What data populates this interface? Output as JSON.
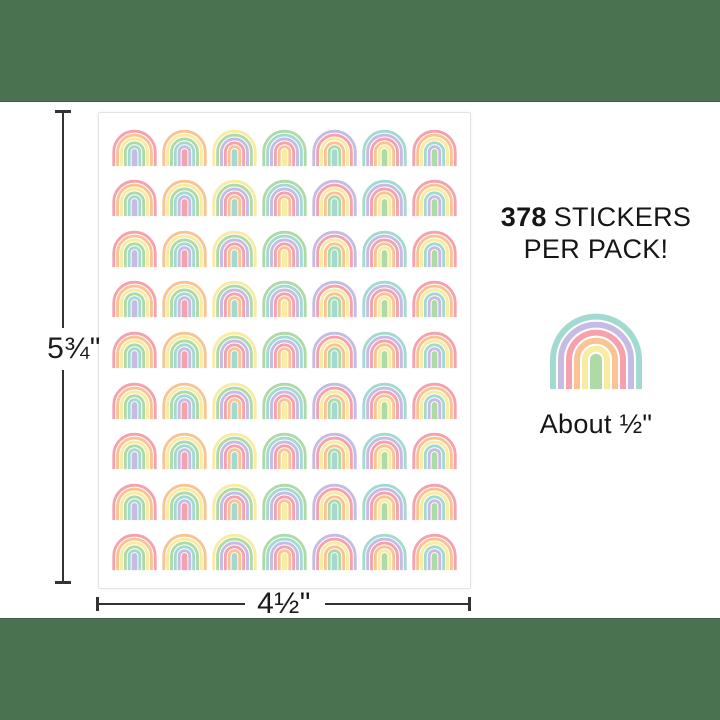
{
  "scene": {
    "background_color": "#4a7150",
    "panel_color": "#ffffff",
    "dimension_line_color": "#333333",
    "text_color": "#1c1c1c"
  },
  "sheet": {
    "rows": 9,
    "columns": 7,
    "sticker_name": "pastel-rainbow",
    "border_color": "#e3e3e3"
  },
  "palette": {
    "pink": "#f5a1ae",
    "orange": "#f9c393",
    "yellow": "#f7eca2",
    "green": "#aedaa8",
    "teal": "#a2dad1",
    "lavender": "#c6bbe2"
  },
  "column_designs": [
    [
      "pink",
      "orange",
      "yellow",
      "green",
      "teal",
      "lavender"
    ],
    [
      "orange",
      "yellow",
      "green",
      "teal",
      "lavender",
      "pink"
    ],
    [
      "yellow",
      "green",
      "lavender",
      "pink",
      "orange",
      "teal"
    ],
    [
      "green",
      "teal",
      "lavender",
      "pink",
      "orange",
      "yellow"
    ],
    [
      "lavender",
      "pink",
      "yellow",
      "orange",
      "green",
      "teal"
    ],
    [
      "teal",
      "lavender",
      "pink",
      "orange",
      "yellow",
      "green"
    ],
    [
      "pink",
      "orange",
      "yellow",
      "teal",
      "lavender",
      "green"
    ]
  ],
  "dimensions": {
    "height_label": "5¾\"",
    "width_label": "4½\""
  },
  "callout": {
    "count": "378",
    "count_suffix": "STICKERS",
    "line2": "PER PACK!",
    "size_note": "About ½\"",
    "sample_design": [
      "teal",
      "lavender",
      "pink",
      "orange",
      "yellow",
      "green"
    ]
  }
}
